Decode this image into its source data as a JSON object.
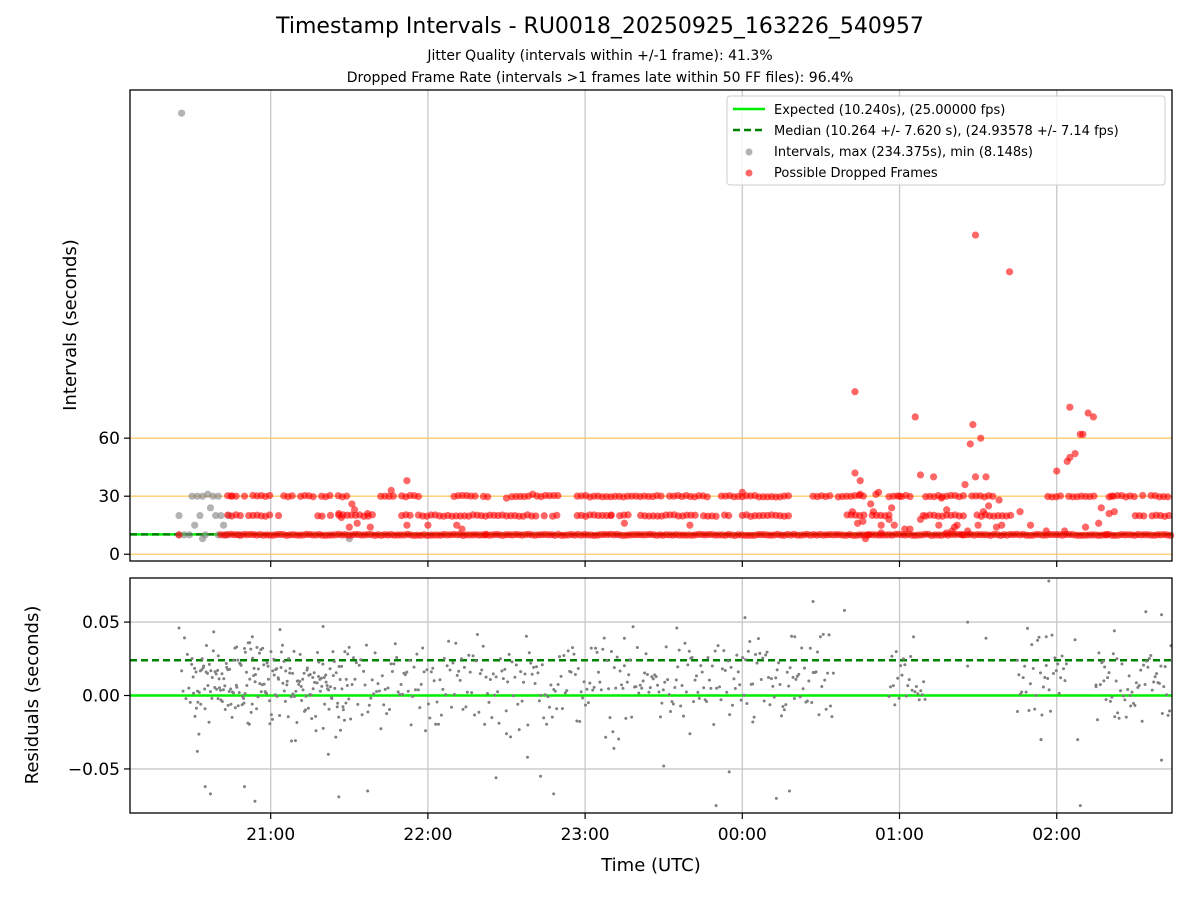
{
  "chart_data": [
    {
      "type": "scatter",
      "title": "Timestamp Intervals - RU0018_20250925_163226_540957",
      "subtitle_1": "Jitter Quality (intervals within +/-1 frame): 41.3%",
      "subtitle_2": "Dropped Frame Rate (intervals >1 frames late within 50 FF files): 96.4%",
      "xlabel": "",
      "ylabel": "Intervals (seconds)",
      "x_unit": "minutes relative to 21:00 UTC",
      "xlim": [
        -53.7,
        344.0
      ],
      "ylim": [
        -3.5,
        240.0
      ],
      "y_ticks": [
        0,
        30,
        60
      ],
      "y_tick_labels": [
        "0",
        "30",
        "60"
      ],
      "x_ticks": [
        0,
        60,
        120,
        180,
        240,
        300
      ],
      "reference_lines": [
        0,
        30,
        60
      ],
      "legend_position": "top-right",
      "legend": [
        "Expected (10.240s), (25.00000 fps)",
        "Median (10.264 +/- 7.620 s), (24.93578 +/- 7.14 fps)",
        "Intervals, max (234.375s), min (8.148s)",
        "Possible Dropped Frames"
      ],
      "series": [
        {
          "name": "Expected",
          "kind": "line",
          "value": 10.24,
          "color": "#00ee00"
        },
        {
          "name": "Median",
          "kind": "line",
          "value": 10.264,
          "color": "#008000"
        },
        {
          "name": "Intervals",
          "kind": "points",
          "color": "#808080",
          "points": [
            [
              -34,
              228
            ],
            [
              -35,
              20
            ],
            [
              -35,
              10
            ],
            [
              -30,
              30
            ],
            [
              -28,
              30
            ],
            [
              -26,
              30
            ],
            [
              -24,
              31
            ],
            [
              -22,
              30
            ],
            [
              -20,
              30
            ],
            [
              -29,
              15
            ],
            [
              -27,
              20
            ],
            [
              -25,
              10
            ],
            [
              -23,
              24
            ],
            [
              -21,
              20
            ],
            [
              -19,
              20
            ],
            [
              -33,
              10
            ],
            [
              -31,
              10
            ],
            [
              -18,
              15
            ],
            [
              -17,
              10
            ],
            [
              -16,
              20
            ],
            [
              -20,
              10
            ],
            [
              -26,
              8
            ],
            [
              30,
              8
            ],
            [
              -12,
              10
            ]
          ]
        },
        {
          "name": "Possible Dropped Frames",
          "kind": "points",
          "color": "#ff0000",
          "baseline_band": {
            "x_start": -19,
            "x_end": 344,
            "value": 10
          },
          "row_20_bands": [
            [
              -18,
              0
            ],
            [
              18,
              40
            ],
            [
              50,
              110
            ],
            [
              117,
              130
            ],
            [
              130,
              175
            ],
            [
              180,
              200
            ],
            [
              220,
              236
            ],
            [
              250,
              265
            ],
            [
              268,
              283
            ],
            [
              330,
              344
            ]
          ],
          "row_30_bands": [
            [
              -18,
              0
            ],
            [
              5,
              30
            ],
            [
              42,
              58
            ],
            [
              70,
              84
            ],
            [
              92,
              110
            ],
            [
              117,
              168
            ],
            [
              172,
              198
            ],
            [
              207,
              227
            ],
            [
              236,
              245
            ],
            [
              250,
              277
            ],
            [
              295,
              315
            ],
            [
              320,
              344
            ]
          ],
          "outliers": [
            [
              269,
              165
            ],
            [
              282,
              146
            ],
            [
              223,
              84
            ],
            [
              246,
              71
            ],
            [
              268,
              67
            ],
            [
              305,
              76
            ],
            [
              312,
              73
            ],
            [
              314,
              71
            ],
            [
              271,
              60
            ],
            [
              267,
              57
            ],
            [
              307,
              52
            ],
            [
              309,
              62
            ],
            [
              310,
              62
            ],
            [
              253,
              40
            ],
            [
              248,
              41
            ],
            [
              269,
              40
            ],
            [
              265,
              36
            ],
            [
              273,
              40
            ],
            [
              225,
              38
            ],
            [
              232,
              32
            ],
            [
              237,
              24
            ],
            [
              240,
              30
            ],
            [
              248,
              18
            ],
            [
              258,
              23
            ],
            [
              229,
              26
            ],
            [
              230,
              22
            ],
            [
              278,
              28
            ],
            [
              274,
              25
            ],
            [
              225,
              31
            ],
            [
              223,
              42
            ],
            [
              256,
              29
            ],
            [
              231,
              31
            ],
            [
              300,
              43
            ],
            [
              304,
              48
            ],
            [
              305,
              50
            ],
            [
              317,
              24
            ],
            [
              320,
              21
            ],
            [
              322,
              22
            ],
            [
              321,
              30
            ],
            [
              -10,
              30
            ],
            [
              52,
              38
            ],
            [
              46,
              33
            ],
            [
              90,
              29
            ],
            [
              100,
              31
            ],
            [
              180,
              32
            ],
            [
              31,
              26
            ],
            [
              32,
              23
            ],
            [
              26,
              21
            ],
            [
              27,
              19
            ],
            [
              30,
              14
            ],
            [
              33,
              16
            ],
            [
              37,
              21
            ],
            [
              38,
              14
            ],
            [
              60,
              15
            ],
            [
              71,
              15
            ],
            [
              73,
              13
            ],
            [
              135,
              16
            ],
            [
              160,
              15
            ],
            [
              222,
              22
            ],
            [
              224,
              16
            ],
            [
              226,
              17
            ],
            [
              228,
              10
            ],
            [
              233,
              15
            ],
            [
              236,
              18
            ],
            [
              238,
              15
            ],
            [
              244,
              13
            ],
            [
              249,
              20
            ],
            [
              255,
              15
            ],
            [
              260,
              12
            ],
            [
              261,
              14
            ],
            [
              262,
              15
            ],
            [
              277,
              14
            ],
            [
              279,
              15
            ],
            [
              286,
              22
            ],
            [
              296,
              12
            ],
            [
              303,
              12
            ],
            [
              311,
              14
            ],
            [
              316,
              16
            ],
            [
              319,
              10
            ],
            [
              264,
              10
            ],
            [
              266,
              12
            ],
            [
              270,
              15
            ],
            [
              272,
              22
            ],
            [
              233,
              11
            ],
            [
              242,
              13
            ],
            [
              258,
              11
            ],
            [
              227,
              8
            ],
            [
              290,
              15
            ],
            [
              -15,
              30
            ],
            [
              3,
              20
            ],
            [
              52,
              15
            ],
            [
              82,
              10
            ],
            [
              -35,
              10
            ]
          ]
        }
      ]
    },
    {
      "type": "scatter",
      "title": "",
      "xlabel": "Time (UTC)",
      "ylabel": "Residuals (seconds)",
      "x_unit": "minutes relative to 21:00 UTC",
      "xlim": [
        -53.7,
        344.0
      ],
      "ylim": [
        -0.08,
        0.08
      ],
      "y_ticks": [
        -0.05,
        0.0,
        0.05
      ],
      "y_tick_labels": [
        "−0.05",
        "0.00",
        "0.05"
      ],
      "x_ticks": [
        0,
        60,
        120,
        180,
        240,
        300
      ],
      "x_tick_labels": [
        "21:00",
        "22:00",
        "23:00",
        "00:00",
        "01:00",
        "02:00"
      ],
      "series": [
        {
          "name": "Expected",
          "kind": "line",
          "value": 0.0,
          "color": "#00ee00"
        },
        {
          "name": "Median",
          "kind": "line",
          "value": 0.024,
          "color": "#008000"
        },
        {
          "name": "Residuals",
          "kind": "points",
          "color": "#808080",
          "segments": [
            [
              -34,
              30
            ],
            [
              -30,
              215
            ],
            [
              236,
              250
            ],
            [
              285,
              304
            ],
            [
              315,
              344
            ]
          ],
          "outliers": [
            [
              -35,
              0.046
            ],
            [
              -28,
              -0.038
            ],
            [
              -25,
              -0.062
            ],
            [
              -23,
              -0.067
            ],
            [
              -10,
              -0.062
            ],
            [
              -6,
              -0.072
            ],
            [
              -20,
              0.027
            ],
            [
              -13,
              0.033
            ],
            [
              -8,
              0.036
            ],
            [
              -10,
              0.032
            ],
            [
              -7,
              0.04
            ],
            [
              20,
              0.047
            ],
            [
              22,
              -0.04
            ],
            [
              26,
              -0.069
            ],
            [
              37,
              -0.065
            ],
            [
              90,
              -0.026
            ],
            [
              86,
              -0.056
            ],
            [
              98,
              -0.042
            ],
            [
              103,
              -0.055
            ],
            [
              108,
              -0.067
            ],
            [
              131,
              -0.036
            ],
            [
              135,
              0.039
            ],
            [
              150,
              -0.048
            ],
            [
              160,
              -0.026
            ],
            [
              170,
              -0.075
            ],
            [
              175,
              -0.052
            ],
            [
              184,
              -0.018
            ],
            [
              193,
              -0.07
            ],
            [
              198,
              -0.065
            ],
            [
              207,
              0.064
            ],
            [
              219,
              0.058
            ],
            [
              181,
              0.053
            ],
            [
              155,
              0.046
            ],
            [
              200,
              0.04
            ],
            [
              266,
              0.02
            ],
            [
              266,
              0.05
            ],
            [
              273,
              0.039
            ],
            [
              294,
              -0.03
            ],
            [
              296,
              0.04
            ],
            [
              297,
              0.078
            ],
            [
              307,
              0.038
            ],
            [
              309,
              -0.075
            ],
            [
              322,
              0.044
            ],
            [
              334,
              0.057
            ],
            [
              340,
              0.055
            ],
            [
              340,
              -0.044
            ],
            [
              294,
              -0.03
            ],
            [
              308,
              -0.03
            ],
            [
              323,
              0.025
            ],
            [
              315,
              0.006
            ],
            [
              285,
              0.024
            ],
            [
              328,
              0.0
            ],
            [
              318,
              0.01
            ]
          ]
        }
      ]
    }
  ]
}
